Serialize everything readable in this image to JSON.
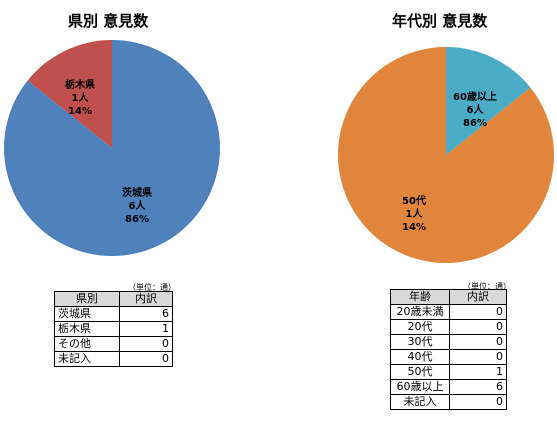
{
  "chart_data": [
    {
      "type": "pie",
      "title": "県別 意見数",
      "slices": [
        {
          "name": "茨城県",
          "value": 6,
          "count_label": "6人",
          "percent_label": "86%",
          "color": "#4f81bd"
        },
        {
          "name": "栃木県",
          "value": 1,
          "count_label": "1人",
          "percent_label": "14%",
          "color": "#c0504d"
        }
      ]
    },
    {
      "type": "pie",
      "title": "年代別 意見数",
      "slices": [
        {
          "name": "50代",
          "value": 1,
          "count_label": "1人",
          "percent_label": "14%",
          "color": "#4bacc6"
        },
        {
          "name": "60歳以上",
          "value": 6,
          "count_label": "6人",
          "percent_label": "86%",
          "color": "#e0853b"
        }
      ]
    }
  ],
  "tables": {
    "prefecture": {
      "unit": "（単位：通）",
      "headers": [
        "県別",
        "内訳"
      ],
      "rows": [
        {
          "label": "茨城県",
          "value": "6"
        },
        {
          "label": "栃木県",
          "value": "1"
        },
        {
          "label": "その他",
          "value": "0"
        },
        {
          "label": "未記入",
          "value": "0"
        }
      ]
    },
    "age": {
      "unit": "（単位：通）",
      "headers": [
        "年齢",
        "内訳"
      ],
      "rows": [
        {
          "label": "20歳未満",
          "value": "0"
        },
        {
          "label": "20代",
          "value": "0"
        },
        {
          "label": "30代",
          "value": "0"
        },
        {
          "label": "40代",
          "value": "0"
        },
        {
          "label": "50代",
          "value": "1"
        },
        {
          "label": "60歳以上",
          "value": "6"
        },
        {
          "label": "未記入",
          "value": "0"
        }
      ]
    }
  }
}
